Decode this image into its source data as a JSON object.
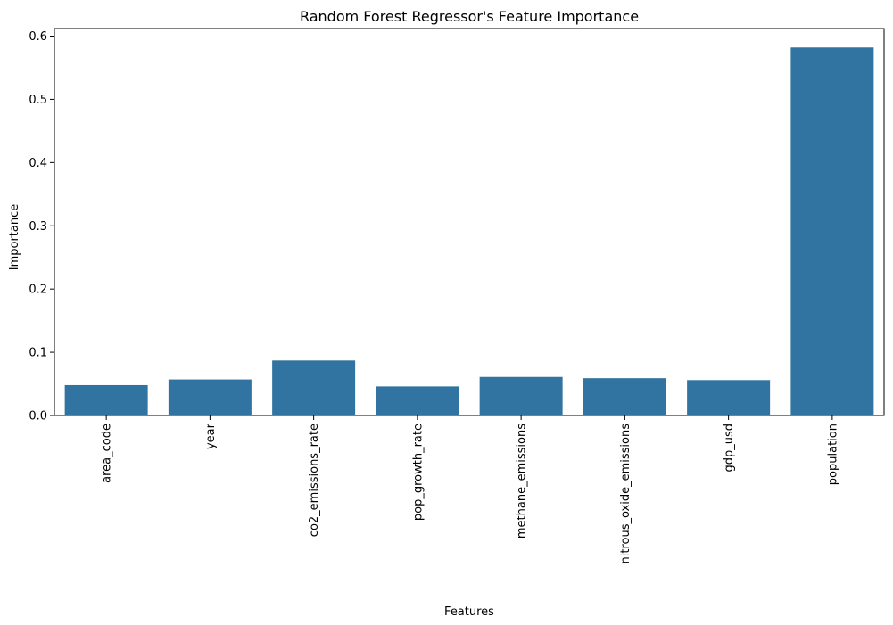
{
  "chart_data": {
    "type": "bar",
    "title": "Random Forest Regressor's Feature Importance",
    "xlabel": "Features",
    "ylabel": "Importance",
    "categories": [
      "area_code",
      "year",
      "co2_emissions_rate",
      "pop_growth_rate",
      "methane_emissions",
      "nitrous_oxide_emissions",
      "gdp_usd",
      "population"
    ],
    "values": [
      0.048,
      0.057,
      0.087,
      0.046,
      0.061,
      0.059,
      0.056,
      0.582
    ],
    "ylim": [
      0,
      0.612
    ],
    "yticks": [
      0.0,
      0.1,
      0.2,
      0.3,
      0.4,
      0.5,
      0.6
    ],
    "ytick_labels": [
      "0.0",
      "0.1",
      "0.2",
      "0.3",
      "0.4",
      "0.5",
      "0.6"
    ],
    "grid": false,
    "bar_color": "#3274a1"
  }
}
